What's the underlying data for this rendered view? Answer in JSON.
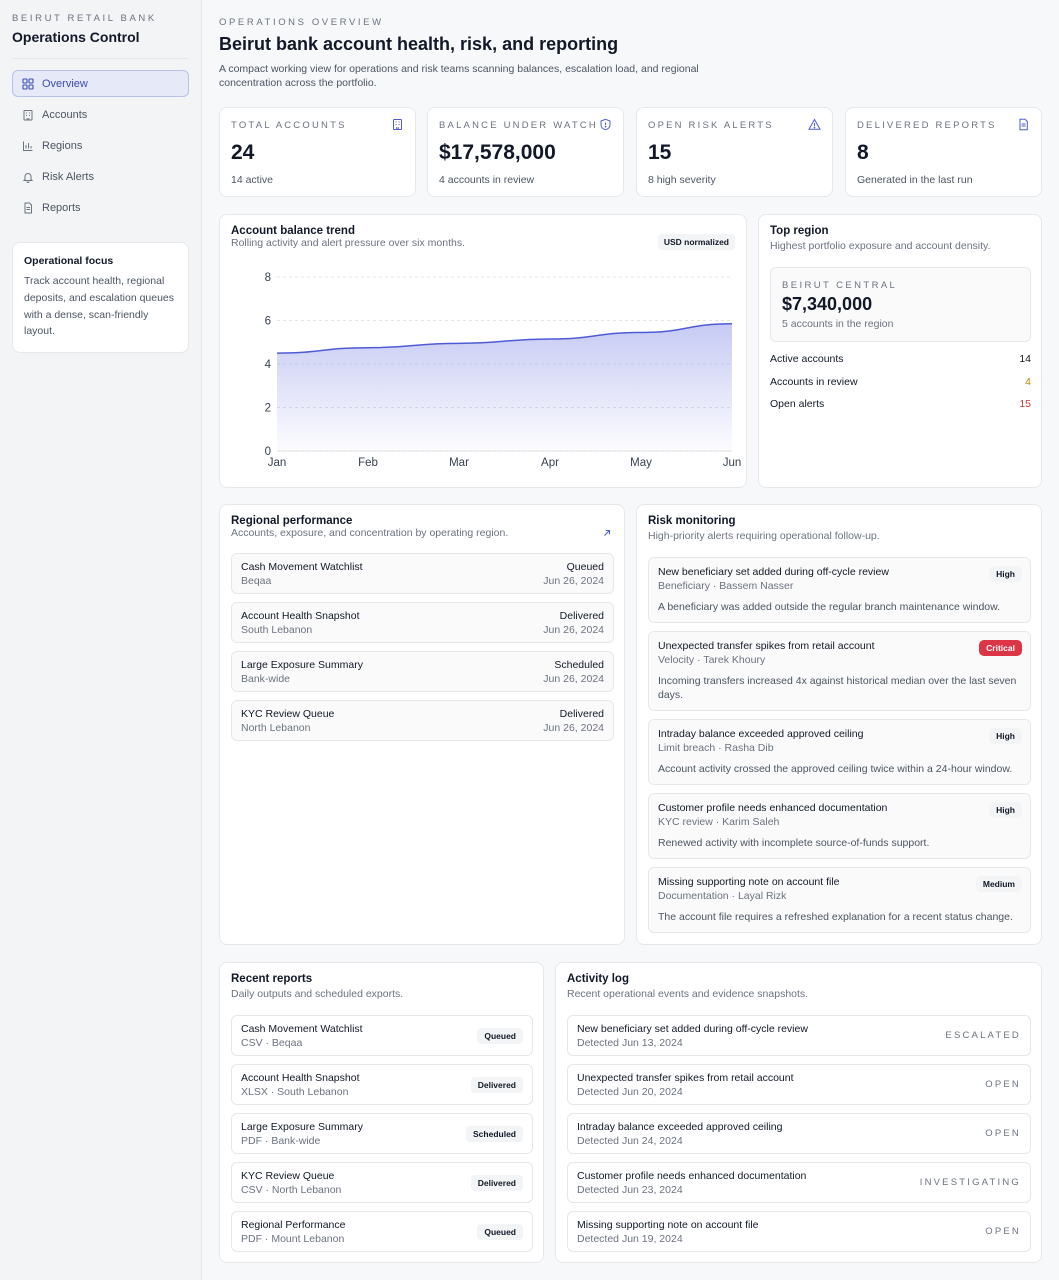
{
  "sidebar": {
    "kicker": "BEIRUT RETAIL BANK",
    "title": "Operations Control",
    "nav": [
      {
        "label": "Overview",
        "icon": "grid-icon",
        "active": true
      },
      {
        "label": "Accounts",
        "icon": "building-icon"
      },
      {
        "label": "Regions",
        "icon": "bar-chart-icon"
      },
      {
        "label": "Risk Alerts",
        "icon": "bell-icon"
      },
      {
        "label": "Reports",
        "icon": "document-icon"
      }
    ],
    "focus": {
      "title": "Operational focus",
      "text": "Track account health, regional deposits, and escalation queues with a dense, scan-friendly layout."
    }
  },
  "header": {
    "kicker": "OPERATIONS OVERVIEW",
    "title": "Beirut bank account health, risk, and reporting",
    "subtitle": "A compact working view for operations and risk teams scanning balances, escalation load, and regional concentration across the portfolio."
  },
  "stats": [
    {
      "label": "TOTAL ACCOUNTS",
      "value": "24",
      "sub": "14 active",
      "icon": "building-icon"
    },
    {
      "label": "BALANCE UNDER WATCH",
      "value": "$17,578,000",
      "sub": "4 accounts in review",
      "icon": "shield-icon"
    },
    {
      "label": "OPEN RISK ALERTS",
      "value": "15",
      "sub": "8 high severity",
      "icon": "warning-icon"
    },
    {
      "label": "DELIVERED REPORTS",
      "value": "8",
      "sub": "Generated in the last run",
      "icon": "document-icon"
    }
  ],
  "trend": {
    "title": "Account balance trend",
    "subtitle": "Rolling activity and alert pressure over six months.",
    "badge": "USD normalized"
  },
  "chart_data": {
    "type": "area",
    "categories": [
      "Jan",
      "Feb",
      "Mar",
      "Apr",
      "May",
      "Jun"
    ],
    "values": [
      4.5,
      4.75,
      4.95,
      5.15,
      5.45,
      5.85
    ],
    "ylim": [
      0,
      8
    ],
    "yticks": [
      "0",
      "2",
      "4",
      "6",
      "8"
    ],
    "grid": true,
    "color": "#4f5bd5"
  },
  "top_region": {
    "title": "Top region",
    "subtitle": "Highest portfolio exposure and account density.",
    "kicker": "BEIRUT CENTRAL",
    "value": "$7,340,000",
    "sub": "5 accounts in the region",
    "metrics": [
      {
        "label": "Active accounts",
        "value": "14",
        "color": "#111827"
      },
      {
        "label": "Accounts in review",
        "value": "4",
        "color": "#c08a00"
      },
      {
        "label": "Open alerts",
        "value": "15",
        "color": "#d03a3a"
      }
    ]
  },
  "regional": {
    "title": "Regional performance",
    "subtitle": "Accounts, exposure, and concentration by operating region.",
    "rows": [
      {
        "name": "Cash Movement Watchlist",
        "region": "Beqaa",
        "status": "Queued",
        "date": "Jun 26, 2024"
      },
      {
        "name": "Account Health Snapshot",
        "region": "South Lebanon",
        "status": "Delivered",
        "date": "Jun 26, 2024"
      },
      {
        "name": "Large Exposure Summary",
        "region": "Bank-wide",
        "status": "Scheduled",
        "date": "Jun 26, 2024"
      },
      {
        "name": "KYC Review Queue",
        "region": "North Lebanon",
        "status": "Delivered",
        "date": "Jun 26, 2024"
      }
    ]
  },
  "risk": {
    "title": "Risk monitoring",
    "subtitle": "High-priority alerts requiring operational follow-up.",
    "items": [
      {
        "title": "New beneficiary set added during off-cycle review",
        "meta": "Beneficiary · Bassem Nasser",
        "desc": "A beneficiary was added outside the regular branch maintenance window.",
        "severity": "High"
      },
      {
        "title": "Unexpected transfer spikes from retail account",
        "meta": "Velocity · Tarek Khoury",
        "desc": "Incoming transfers increased 4x against historical median over the last seven days.",
        "severity": "Critical"
      },
      {
        "title": "Intraday balance exceeded approved ceiling",
        "meta": "Limit breach · Rasha Dib",
        "desc": "Account activity crossed the approved ceiling twice within a 24-hour window.",
        "severity": "High"
      },
      {
        "title": "Customer profile needs enhanced documentation",
        "meta": "KYC review · Karim Saleh",
        "desc": "Renewed activity with incomplete source-of-funds support.",
        "severity": "High"
      },
      {
        "title": "Missing supporting note on account file",
        "meta": "Documentation · Layal Rizk",
        "desc": "The account file requires a refreshed explanation for a recent status change.",
        "severity": "Medium"
      }
    ]
  },
  "reports": {
    "title": "Recent reports",
    "subtitle": "Daily outputs and scheduled exports.",
    "rows": [
      {
        "name": "Cash Movement Watchlist",
        "meta": "CSV · Beqaa",
        "status": "Queued"
      },
      {
        "name": "Account Health Snapshot",
        "meta": "XLSX · South Lebanon",
        "status": "Delivered"
      },
      {
        "name": "Large Exposure Summary",
        "meta": "PDF · Bank-wide",
        "status": "Scheduled"
      },
      {
        "name": "KYC Review Queue",
        "meta": "CSV · North Lebanon",
        "status": "Delivered"
      },
      {
        "name": "Regional Performance",
        "meta": "PDF · Mount Lebanon",
        "status": "Queued"
      }
    ]
  },
  "activity": {
    "title": "Activity log",
    "subtitle": "Recent operational events and evidence snapshots.",
    "rows": [
      {
        "title": "New beneficiary set added during off-cycle review",
        "date": "Detected Jun 13, 2024",
        "status": "ESCALATED"
      },
      {
        "title": "Unexpected transfer spikes from retail account",
        "date": "Detected Jun 20, 2024",
        "status": "OPEN"
      },
      {
        "title": "Intraday balance exceeded approved ceiling",
        "date": "Detected Jun 24, 2024",
        "status": "OPEN"
      },
      {
        "title": "Customer profile needs enhanced documentation",
        "date": "Detected Jun 23, 2024",
        "status": "INVESTIGATING"
      },
      {
        "title": "Missing supporting note on account file",
        "date": "Detected Jun 19, 2024",
        "status": "OPEN"
      }
    ]
  }
}
